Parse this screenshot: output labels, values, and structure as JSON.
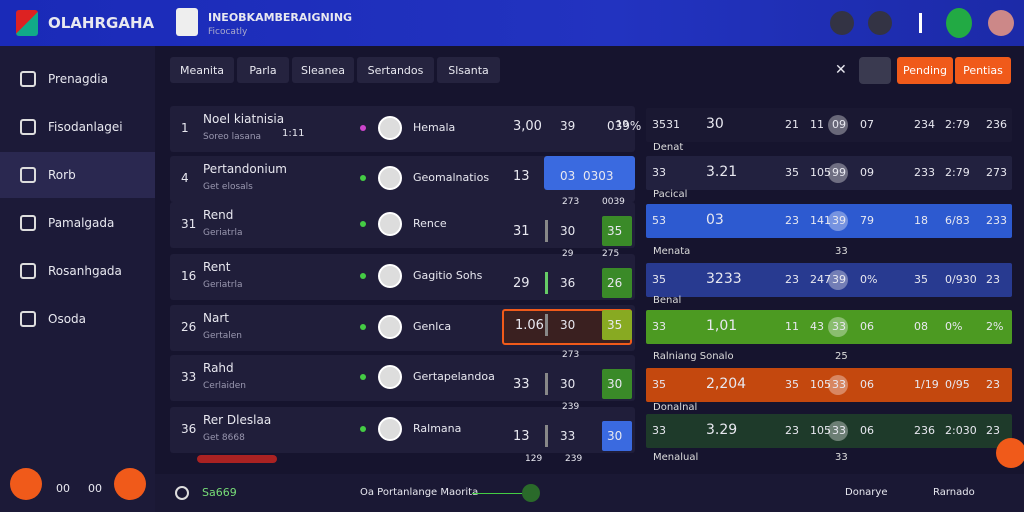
{
  "header": {
    "brand": "OLAHRGAHA",
    "team_title": "INEOBKAMBERAIGNING",
    "team_subtitle": "Ficocatly"
  },
  "sidebar": {
    "items": [
      "Prenagdia",
      "Fisodanlagei",
      "Rorb",
      "Pamalgada",
      "Rosanhgada",
      "Osoda"
    ],
    "bottom": [
      "00",
      "00"
    ]
  },
  "tabs": [
    "Meanita",
    "Parla",
    "Sleanea",
    "Sertandos",
    "Slsanta"
  ],
  "buttons": [
    "Pending",
    "Pentias"
  ],
  "left_table": {
    "rows": [
      {
        "rank": "1",
        "name": "Noel kiatnisia",
        "sub": "Soreo lasana",
        "extra": "1:11",
        "player": "Hemala",
        "score": "3,00",
        "a": "39",
        "b": "039%",
        "c": "19"
      },
      {
        "rank": "4",
        "name": "Pertandonium",
        "sub": "Get elosals",
        "player": "Geomalnatios",
        "score": "13",
        "a": "03",
        "b": "0303"
      },
      {
        "rank": "31",
        "name": "Rend",
        "sub": "Geriatrla",
        "player": "Rence",
        "score": "31",
        "a": "30",
        "b": "35",
        "top": [
          "273",
          "0039"
        ]
      },
      {
        "rank": "16",
        "name": "Rent",
        "sub": "Geriatrla",
        "player": "Gagitio Sohs",
        "score": "29",
        "a": "36",
        "b": "26",
        "top": [
          "29",
          "275"
        ]
      },
      {
        "rank": "26",
        "name": "Nart",
        "sub": "Gertalen",
        "player": "Genlca",
        "score": "1.06",
        "a": "30",
        "b": "35"
      },
      {
        "rank": "33",
        "name": "Rahd",
        "sub": "Cerlaiden",
        "player": "Gertapelandoa",
        "score": "33",
        "a": "30",
        "b": "30",
        "top": [
          "273"
        ]
      },
      {
        "rank": "36",
        "name": "Rer Dleslaa",
        "sub": "Get 8668",
        "player": "Ralmana",
        "score": "13",
        "a": "33",
        "b": "30",
        "top": [
          "239"
        ]
      }
    ],
    "footer": [
      "129",
      "239"
    ]
  },
  "right_table": {
    "rows": [
      {
        "cells": [
          "3531",
          "30",
          "21",
          "11",
          "09",
          "07",
          "234",
          "2:79",
          "236"
        ],
        "color": "#1a1832"
      },
      {
        "label": "Denat",
        "cells": [
          "33",
          "3.21",
          "35",
          "105",
          "99",
          "09",
          "233",
          "2:79",
          "273"
        ],
        "color": "#22213f"
      },
      {
        "label": "Pacical",
        "cells": [
          "53",
          "03",
          "23",
          "141",
          "39",
          "79",
          "18",
          "6/83",
          "233"
        ],
        "color": "#2d5ad0"
      },
      {
        "label": "Menata",
        "note": "33",
        "cells": [
          "35",
          "3233",
          "23",
          "247",
          "39",
          "0%",
          "35",
          "0/930",
          "23"
        ],
        "color": "#283a90"
      },
      {
        "label": "Benal",
        "cells": [
          "33",
          "1,01",
          "11",
          "43",
          "33",
          "06",
          "08",
          "0%",
          "2%"
        ],
        "color": "#4c9a22"
      },
      {
        "label": "Ralniang Sonalo",
        "note": "25",
        "cells": [
          "35",
          "2,204",
          "35",
          "105",
          "33",
          "06",
          "1/19",
          "0/95",
          "23"
        ],
        "color": "#c4480e"
      },
      {
        "label": "Donalnal",
        "cells": [
          "33",
          "3.29",
          "23",
          "105",
          "33",
          "06",
          "236",
          "2:030",
          "23"
        ],
        "color": "#1e3a2a"
      }
    ],
    "last_label": "Menalual",
    "last_note": "33"
  },
  "footer": {
    "left": "Sa669",
    "center": "Oa Portanlange Maorita",
    "right": [
      "Donarye",
      "Rarnado"
    ]
  }
}
